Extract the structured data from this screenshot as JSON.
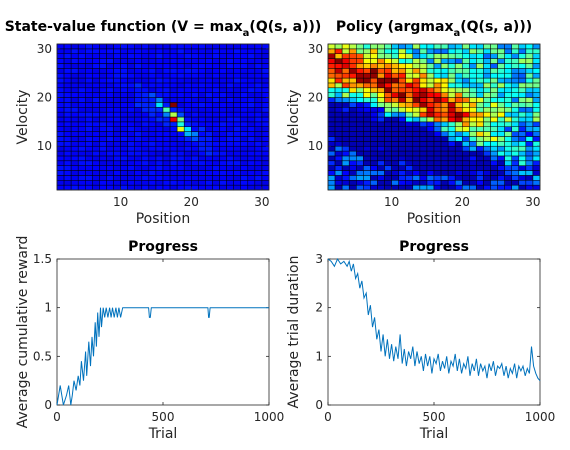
{
  "colors": {
    "series": "#0072bd",
    "axis": "#262626",
    "background": "#ffffff"
  },
  "chart_data": [
    {
      "type": "heatmap",
      "colormap": "jet",
      "title": "State-value function (V = max",
      "title_sub": "a",
      "title_tail": "(Q(s, a)))",
      "xlabel": "Position",
      "ylabel": "Velocity",
      "xlim": [
        1,
        31
      ],
      "ylim": [
        1,
        31
      ],
      "xticks": [
        10,
        20,
        30
      ],
      "yticks": [
        10,
        20,
        30
      ],
      "grid_size": [
        30,
        30
      ],
      "value_scale": "near-zero everywhere except a diagonal band of higher values",
      "hotspots": [
        {
          "x": 17,
          "y": 18,
          "v": 1.0
        },
        {
          "x": 16,
          "y": 17,
          "v": 0.45
        },
        {
          "x": 15,
          "y": 18,
          "v": 0.35
        },
        {
          "x": 15,
          "y": 19,
          "v": 0.25
        },
        {
          "x": 17,
          "y": 16,
          "v": 0.55
        },
        {
          "x": 17,
          "y": 15,
          "v": 0.9
        },
        {
          "x": 18,
          "y": 15,
          "v": 0.5
        },
        {
          "x": 18,
          "y": 14,
          "v": 0.4
        },
        {
          "x": 19,
          "y": 13,
          "v": 0.35
        },
        {
          "x": 18,
          "y": 13,
          "v": 0.6
        },
        {
          "x": 19,
          "y": 12,
          "v": 0.3
        },
        {
          "x": 20,
          "y": 12,
          "v": 0.25
        },
        {
          "x": 20,
          "y": 11,
          "v": 0.2
        },
        {
          "x": 14,
          "y": 20,
          "v": 0.2
        },
        {
          "x": 16,
          "y": 16,
          "v": 0.25
        },
        {
          "x": 18,
          "y": 16,
          "v": 0.2
        },
        {
          "x": 21,
          "y": 10,
          "v": 0.15
        },
        {
          "x": 13,
          "y": 19,
          "v": 0.15
        }
      ]
    },
    {
      "type": "heatmap",
      "colormap": "jet",
      "title": "Policy (argmax",
      "title_sub": "a",
      "title_tail": "(Q(s, a)))",
      "xlabel": "Position",
      "ylabel": "Velocity",
      "xlim": [
        1,
        31
      ],
      "ylim": [
        1,
        31
      ],
      "xticks": [
        10,
        20,
        30
      ],
      "yticks": [
        10,
        20,
        30
      ],
      "grid_size": [
        30,
        30
      ],
      "value_scale": "0 = low action index, 1 = high action index",
      "band_high": {
        "points_xy": [
          [
            1,
            26
          ],
          [
            6,
            24
          ],
          [
            11,
            21
          ],
          [
            15,
            18
          ],
          [
            18,
            15
          ],
          [
            22,
            11
          ],
          [
            25,
            8
          ],
          [
            28,
            6
          ],
          [
            31,
            4
          ]
        ],
        "width": 3.2
      },
      "band_low": {
        "points_xy": [
          [
            1,
            16
          ],
          [
            5,
            15
          ],
          [
            9,
            13
          ],
          [
            13,
            11
          ],
          [
            17,
            9
          ],
          [
            22,
            7
          ],
          [
            27,
            5
          ],
          [
            31,
            4
          ]
        ],
        "width": 3.0
      },
      "upper_region_mean": 0.62,
      "lower_region_mean": 0.38
    },
    {
      "type": "line",
      "title": "Progress",
      "xlabel": "Trial",
      "ylabel": "Average cumulative reward",
      "xlim": [
        0,
        1000
      ],
      "ylim": [
        0,
        1.5
      ],
      "xticks": [
        0,
        500,
        1000
      ],
      "yticks": [
        0,
        0.5,
        1,
        1.5
      ],
      "yticklabels": [
        "0",
        "0.5",
        "1",
        "1.5"
      ],
      "series": [
        {
          "x": [
            0,
            15,
            30,
            45,
            55,
            65,
            72,
            80,
            90,
            100,
            108,
            115,
            125,
            135,
            140,
            150,
            158,
            165,
            172,
            180,
            186,
            192,
            198,
            205,
            210,
            218,
            225,
            232,
            240,
            248,
            255,
            262,
            270,
            278,
            285,
            292,
            300,
            310,
            320,
            340,
            420,
            432,
            436,
            440,
            445,
            450,
            700,
            712,
            715,
            718,
            722,
            725,
            1000
          ],
          "y": [
            0,
            0.2,
            0,
            0.1,
            0.2,
            0,
            0.1,
            0.25,
            0.15,
            0.3,
            0.2,
            0.45,
            0.25,
            0.55,
            0.3,
            0.65,
            0.4,
            0.7,
            0.5,
            0.85,
            0.6,
            0.95,
            0.7,
            1,
            0.8,
            1,
            0.9,
            1,
            0.9,
            1,
            0.9,
            1,
            0.9,
            1,
            0.9,
            1,
            0.9,
            1,
            1,
            1,
            1,
            1,
            0.9,
            0.9,
            1,
            1,
            1,
            1,
            0.9,
            0.9,
            1,
            1,
            1
          ]
        }
      ]
    },
    {
      "type": "line",
      "title": "Progress",
      "xlabel": "Trial",
      "ylabel": "Average trial duration",
      "xlim": [
        0,
        1000
      ],
      "ylim": [
        0,
        3
      ],
      "xticks": [
        0,
        500,
        1000
      ],
      "yticks": [
        0,
        1,
        2,
        3
      ],
      "yticklabels": [
        "0",
        "1",
        "2",
        "3"
      ],
      "series": [
        {
          "x": [
            0,
            15,
            30,
            45,
            60,
            75,
            90,
            100,
            110,
            120,
            130,
            140,
            150,
            160,
            170,
            180,
            190,
            200,
            210,
            220,
            230,
            240,
            250,
            260,
            270,
            280,
            290,
            300,
            310,
            320,
            330,
            340,
            350,
            360,
            370,
            380,
            390,
            400,
            410,
            420,
            430,
            440,
            450,
            460,
            470,
            480,
            490,
            500,
            510,
            520,
            530,
            540,
            550,
            560,
            570,
            580,
            590,
            600,
            610,
            620,
            630,
            640,
            650,
            660,
            670,
            680,
            690,
            700,
            710,
            720,
            730,
            740,
            750,
            760,
            770,
            780,
            790,
            800,
            810,
            820,
            830,
            840,
            850,
            860,
            870,
            880,
            890,
            900,
            910,
            920,
            930,
            940,
            950,
            960,
            970,
            980,
            990,
            1000
          ],
          "y": [
            3,
            2.95,
            2.85,
            3,
            2.9,
            2.95,
            2.85,
            2.95,
            2.75,
            2.9,
            2.6,
            2.7,
            2.4,
            2.55,
            2.2,
            2.3,
            1.85,
            2.05,
            1.6,
            1.8,
            1.35,
            1.55,
            1.1,
            1.45,
            1.0,
            1.35,
            0.95,
            1.25,
            0.9,
            1.2,
            0.95,
            1.45,
            0.85,
            1.15,
            0.8,
            1.1,
            0.95,
            1.2,
            0.8,
            1.1,
            0.85,
            1.0,
            0.7,
            1.05,
            0.8,
            1.0,
            0.65,
            0.95,
            0.85,
            1.05,
            0.7,
            0.9,
            0.75,
            1.0,
            0.65,
            0.9,
            0.8,
            1.05,
            0.7,
            0.95,
            0.65,
            0.85,
            0.75,
            1.0,
            0.6,
            0.85,
            0.7,
            0.95,
            0.6,
            0.85,
            0.7,
            0.8,
            0.55,
            0.85,
            0.7,
            0.9,
            0.6,
            0.8,
            0.75,
            0.85,
            0.6,
            0.8,
            0.55,
            0.75,
            0.65,
            0.85,
            0.55,
            0.8,
            0.7,
            0.8,
            0.6,
            0.75,
            0.65,
            1.2,
            0.8,
            0.65,
            0.55,
            0.5
          ]
        }
      ]
    }
  ]
}
